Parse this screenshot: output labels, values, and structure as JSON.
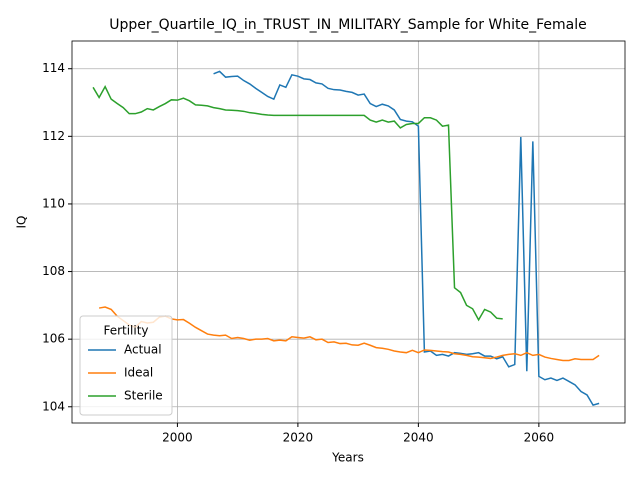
{
  "chart_data": {
    "type": "line",
    "title": "Upper_Quartile_IQ_in_TRUST_IN_MILITARY_Sample for White_Female",
    "xlabel": "Years",
    "ylabel": "IQ",
    "xlim": [
      1982.5,
      2074.3
    ],
    "ylim": [
      103.52,
      114.82
    ],
    "xticks": [
      2000,
      2020,
      2040,
      2060
    ],
    "yticks": [
      104,
      106,
      108,
      110,
      112,
      114
    ],
    "grid": true,
    "legend_title": "Fertility",
    "legend_loc": "lower left",
    "series": [
      {
        "name": "Actual",
        "color": "#1f77b4",
        "x": [
          2006,
          2007,
          2008,
          2009,
          2010,
          2011,
          2012,
          2013,
          2014,
          2015,
          2016,
          2017,
          2018,
          2019,
          2020,
          2021,
          2022,
          2023,
          2024,
          2025,
          2026,
          2027,
          2028,
          2029,
          2030,
          2031,
          2032,
          2033,
          2034,
          2035,
          2036,
          2037,
          2038,
          2039,
          2040,
          2041,
          2042,
          2043,
          2044,
          2045,
          2046,
          2047,
          2048,
          2049,
          2050,
          2051,
          2052,
          2053,
          2054,
          2055,
          2056,
          2057,
          2058,
          2059,
          2060,
          2061,
          2062,
          2063,
          2064,
          2065,
          2066,
          2067,
          2068,
          2069,
          2070
        ],
        "values": [
          113.85,
          113.92,
          113.75,
          113.77,
          113.78,
          113.65,
          113.55,
          113.42,
          113.3,
          113.18,
          113.1,
          113.52,
          113.45,
          113.82,
          113.78,
          113.7,
          113.68,
          113.58,
          113.55,
          113.42,
          113.38,
          113.37,
          113.33,
          113.3,
          113.22,
          113.25,
          112.97,
          112.88,
          112.95,
          112.9,
          112.78,
          112.5,
          112.45,
          112.43,
          112.3,
          105.62,
          105.65,
          105.52,
          105.55,
          105.5,
          105.6,
          105.58,
          105.55,
          105.57,
          105.6,
          105.5,
          105.5,
          105.42,
          105.48,
          105.18,
          105.25,
          111.98,
          105.05,
          111.85,
          104.9,
          104.8,
          104.85,
          104.78,
          104.85,
          104.75,
          104.65,
          104.45,
          104.35,
          104.05,
          104.1
        ]
      },
      {
        "name": "Ideal",
        "color": "#ff7f0e",
        "x": [
          1987,
          1988,
          1989,
          1990,
          1991,
          1992,
          1993,
          1994,
          1995,
          1996,
          1997,
          1998,
          1999,
          2000,
          2001,
          2002,
          2003,
          2004,
          2005,
          2006,
          2007,
          2008,
          2009,
          2010,
          2011,
          2012,
          2013,
          2014,
          2015,
          2016,
          2017,
          2018,
          2019,
          2020,
          2021,
          2022,
          2023,
          2024,
          2025,
          2026,
          2027,
          2028,
          2029,
          2030,
          2031,
          2032,
          2033,
          2034,
          2035,
          2036,
          2037,
          2038,
          2039,
          2040,
          2041,
          2042,
          2043,
          2044,
          2045,
          2046,
          2047,
          2048,
          2049,
          2050,
          2051,
          2052,
          2053,
          2054,
          2055,
          2056,
          2057,
          2058,
          2059,
          2060,
          2061,
          2062,
          2063,
          2064,
          2065,
          2066,
          2067,
          2068,
          2069,
          2070
        ],
        "values": [
          106.92,
          106.95,
          106.88,
          106.68,
          106.55,
          106.42,
          106.35,
          106.52,
          106.48,
          106.5,
          106.65,
          106.68,
          106.6,
          106.57,
          106.58,
          106.47,
          106.35,
          106.25,
          106.15,
          106.12,
          106.1,
          106.12,
          106.02,
          106.05,
          106.02,
          105.97,
          106.0,
          106.0,
          106.02,
          105.95,
          105.97,
          105.95,
          106.07,
          106.05,
          106.03,
          106.07,
          105.98,
          106.0,
          105.9,
          105.92,
          105.87,
          105.88,
          105.83,
          105.82,
          105.88,
          105.82,
          105.75,
          105.73,
          105.7,
          105.65,
          105.62,
          105.6,
          105.67,
          105.6,
          105.68,
          105.67,
          105.65,
          105.63,
          105.62,
          105.57,
          105.55,
          105.52,
          105.48,
          105.47,
          105.45,
          105.43,
          105.47,
          105.52,
          105.55,
          105.57,
          105.52,
          105.6,
          105.52,
          105.55,
          105.47,
          105.43,
          105.4,
          105.37,
          105.37,
          105.42,
          105.4,
          105.4,
          105.4,
          105.52
        ]
      },
      {
        "name": "Sterile",
        "color": "#2ca02c",
        "x": [
          1986,
          1987,
          1988,
          1989,
          1990,
          1991,
          1992,
          1993,
          1994,
          1995,
          1996,
          1997,
          1998,
          1999,
          2000,
          2001,
          2002,
          2003,
          2004,
          2005,
          2006,
          2007,
          2008,
          2009,
          2010,
          2011,
          2012,
          2013,
          2014,
          2015,
          2016,
          2017,
          2018,
          2019,
          2020,
          2021,
          2022,
          2023,
          2024,
          2025,
          2026,
          2027,
          2028,
          2029,
          2030,
          2031,
          2032,
          2033,
          2034,
          2035,
          2036,
          2037,
          2038,
          2039,
          2040,
          2041,
          2042,
          2043,
          2044,
          2045,
          2046,
          2047,
          2048,
          2049,
          2050,
          2051,
          2052,
          2053,
          2054
        ],
        "values": [
          113.45,
          113.15,
          113.47,
          113.1,
          112.97,
          112.85,
          112.67,
          112.67,
          112.72,
          112.82,
          112.78,
          112.88,
          112.97,
          113.08,
          113.07,
          113.13,
          113.05,
          112.93,
          112.92,
          112.9,
          112.85,
          112.82,
          112.78,
          112.77,
          112.76,
          112.74,
          112.7,
          112.68,
          112.65,
          112.63,
          112.62,
          112.62,
          112.62,
          112.62,
          112.62,
          112.62,
          112.62,
          112.62,
          112.62,
          112.62,
          112.62,
          112.62,
          112.62,
          112.62,
          112.62,
          112.62,
          112.48,
          112.42,
          112.48,
          112.42,
          112.45,
          112.25,
          112.35,
          112.38,
          112.38,
          112.55,
          112.55,
          112.48,
          112.3,
          112.33,
          107.52,
          107.38,
          107.0,
          106.9,
          106.57,
          106.88,
          106.8,
          106.62,
          106.6
        ]
      }
    ]
  }
}
